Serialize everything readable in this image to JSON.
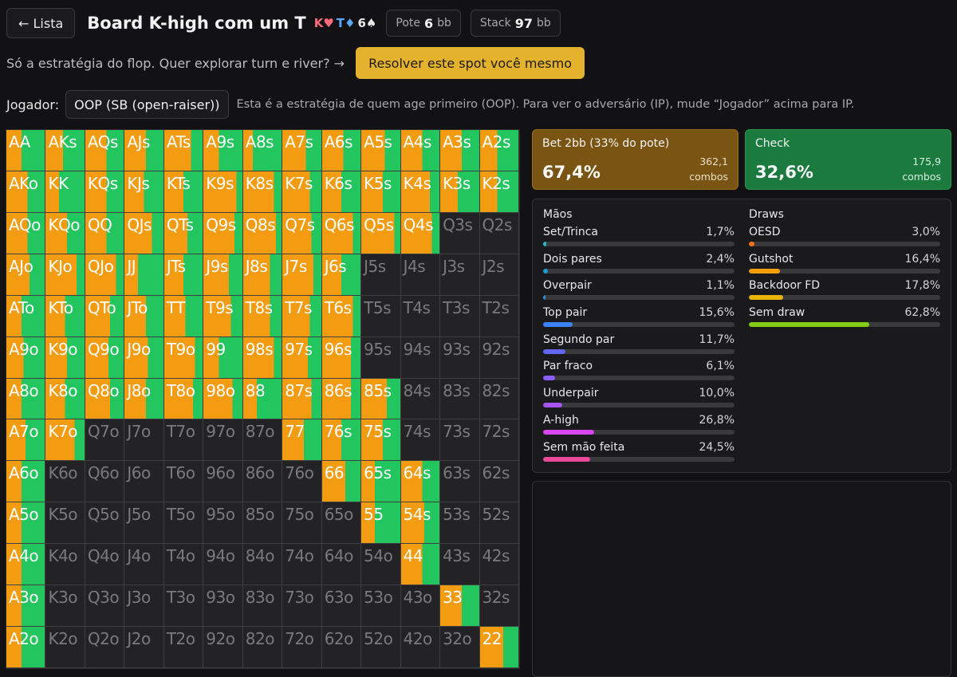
{
  "header": {
    "back_label": "← Lista",
    "title": "Board K-high com um T",
    "board": [
      {
        "rank": "K",
        "suit": "♥",
        "suit_name": "hearts",
        "color": "#ff6b7a"
      },
      {
        "rank": "T",
        "suit": "♦",
        "suit_name": "diamonds",
        "color": "#5aa9ff"
      },
      {
        "rank": "6",
        "suit": "♠",
        "suit_name": "spades",
        "color": "#e9e9e9"
      }
    ],
    "pot_label": "Pote",
    "pot_value": "6",
    "pot_unit": "bb",
    "stack_label": "Stack",
    "stack_value": "97",
    "stack_unit": "bb"
  },
  "promo": {
    "text": "Só a estratégia do flop. Quer explorar turn e river? →",
    "button_label": "Resolver este spot você mesmo"
  },
  "player": {
    "label": "Jogador:",
    "selected": "OOP (SB (open-raiser))",
    "hint": "Esta é a estratégia de quem age primeiro (OOP). Para ver o adversário (IP), mude “Jogador” acima para IP."
  },
  "colors": {
    "bet": "#f39c12",
    "check": "#22c55e",
    "empty": "#232325"
  },
  "grid": {
    "ranks": [
      "A",
      "K",
      "Q",
      "J",
      "T",
      "9",
      "8",
      "7",
      "6",
      "5",
      "4",
      "3",
      "2"
    ],
    "bet_fractions": [
      [
        0.4,
        0.45,
        0.55,
        0.55,
        0.7,
        0.4,
        0.25,
        0.6,
        0.55,
        0.6,
        0.55,
        0.55,
        0.45
      ],
      [
        0.55,
        0.35,
        0.55,
        0.5,
        0.5,
        0.85,
        0.8,
        0.7,
        0.5,
        0.55,
        0.75,
        0.45,
        0.45
      ],
      [
        0.55,
        0.55,
        0.55,
        0.7,
        0.6,
        0.8,
        0.85,
        0.75,
        0.8,
        0.85,
        0.8,
        0,
        0
      ],
      [
        0.6,
        0.8,
        0.8,
        0.35,
        0.5,
        0.65,
        0.7,
        0.8,
        0.5,
        0,
        0,
        0,
        0
      ],
      [
        0.4,
        0.5,
        0.65,
        0.55,
        0.55,
        0.7,
        0.7,
        0.7,
        0.8,
        0,
        0,
        0,
        0
      ],
      [
        0.45,
        0.55,
        0.6,
        0.6,
        0.8,
        0.4,
        0.8,
        0.65,
        0.75,
        0,
        0,
        0,
        0
      ],
      [
        0.4,
        0.5,
        0.65,
        0.55,
        0.75,
        0.75,
        0.35,
        0.75,
        0.75,
        0.65,
        0,
        0,
        0
      ],
      [
        0.5,
        0.75,
        0,
        0,
        0,
        0,
        0,
        0.55,
        0.5,
        0.55,
        0,
        0,
        0
      ],
      [
        0.4,
        0,
        0,
        0,
        0,
        0,
        0,
        0,
        0.6,
        0.35,
        0.55,
        0,
        0
      ],
      [
        0.4,
        0,
        0,
        0,
        0,
        0,
        0,
        0,
        0,
        0.35,
        0.6,
        0,
        0
      ],
      [
        0.4,
        0,
        0,
        0,
        0,
        0,
        0,
        0,
        0,
        0,
        0.55,
        0,
        0
      ],
      [
        0.4,
        0,
        0,
        0,
        0,
        0,
        0,
        0,
        0,
        0,
        0,
        0.55,
        0
      ],
      [
        0.4,
        0,
        0,
        0,
        0,
        0,
        0,
        0,
        0,
        0,
        0,
        0,
        0.6
      ]
    ],
    "check_fractions": [
      [
        0.6,
        0.55,
        0.45,
        0.45,
        0.3,
        0.6,
        0.75,
        0.4,
        0.45,
        0.4,
        0.45,
        0.45,
        0.55
      ],
      [
        0.45,
        0.65,
        0.45,
        0.5,
        0.5,
        0.15,
        0.2,
        0.3,
        0.5,
        0.45,
        0.25,
        0.55,
        0.55
      ],
      [
        0.45,
        0.45,
        0.45,
        0.3,
        0.4,
        0.2,
        0.15,
        0.25,
        0.2,
        0.15,
        0.2,
        0,
        0
      ],
      [
        0.4,
        0.2,
        0.2,
        0.65,
        0.5,
        0.35,
        0.3,
        0.2,
        0.5,
        0,
        0,
        0,
        0
      ],
      [
        0.6,
        0.5,
        0.35,
        0.45,
        0.45,
        0.3,
        0.3,
        0.3,
        0.2,
        0,
        0,
        0,
        0
      ],
      [
        0.55,
        0.45,
        0.4,
        0.4,
        0.2,
        0.6,
        0.2,
        0.35,
        0.25,
        0,
        0,
        0,
        0
      ],
      [
        0.6,
        0.5,
        0.35,
        0.45,
        0.25,
        0.25,
        0.65,
        0.25,
        0.25,
        0.35,
        0,
        0,
        0
      ],
      [
        0.5,
        0.25,
        0,
        0,
        0,
        0,
        0,
        0.45,
        0.5,
        0.45,
        0,
        0,
        0
      ],
      [
        0.6,
        0,
        0,
        0,
        0,
        0,
        0,
        0,
        0.4,
        0.65,
        0.45,
        0,
        0
      ],
      [
        0.6,
        0,
        0,
        0,
        0,
        0,
        0,
        0,
        0,
        0.65,
        0.4,
        0,
        0
      ],
      [
        0.6,
        0,
        0,
        0,
        0,
        0,
        0,
        0,
        0,
        0,
        0.45,
        0,
        0
      ],
      [
        0.6,
        0,
        0,
        0,
        0,
        0,
        0,
        0,
        0,
        0,
        0,
        0.45,
        0
      ],
      [
        0.6,
        0,
        0,
        0,
        0,
        0,
        0,
        0,
        0,
        0,
        0,
        0,
        0.4
      ]
    ]
  },
  "actions": {
    "bet": {
      "label": "Bet 2bb (33% do pote)",
      "pct": "67,4%",
      "combos": "362,1",
      "combos_label": "combos"
    },
    "check": {
      "label": "Check",
      "pct": "32,6%",
      "combos": "175,9",
      "combos_label": "combos"
    }
  },
  "stats": {
    "hands_title": "Mãos",
    "hands": [
      {
        "name": "Set/Trinca",
        "value": "1,7%",
        "pct": 1.7,
        "color": "#22b8cf"
      },
      {
        "name": "Dois pares",
        "value": "2,4%",
        "pct": 2.4,
        "color": "#1c9bd6"
      },
      {
        "name": "Overpair",
        "value": "1,1%",
        "pct": 1.1,
        "color": "#2b8fe0"
      },
      {
        "name": "Top pair",
        "value": "15,6%",
        "pct": 15.6,
        "color": "#3b82f6"
      },
      {
        "name": "Segundo par",
        "value": "11,7%",
        "pct": 11.7,
        "color": "#6366f1"
      },
      {
        "name": "Par fraco",
        "value": "6,1%",
        "pct": 6.1,
        "color": "#8b5cf6"
      },
      {
        "name": "Underpair",
        "value": "10,0%",
        "pct": 10.0,
        "color": "#a855f7"
      },
      {
        "name": "A-high",
        "value": "26,8%",
        "pct": 26.8,
        "color": "#d946ef"
      },
      {
        "name": "Sem mão feita",
        "value": "24,5%",
        "pct": 24.5,
        "color": "#ec4899"
      }
    ],
    "draws_title": "Draws",
    "draws": [
      {
        "name": "OESD",
        "value": "3,0%",
        "pct": 3.0,
        "color": "#f97316"
      },
      {
        "name": "Gutshot",
        "value": "16,4%",
        "pct": 16.4,
        "color": "#f59e0b"
      },
      {
        "name": "Backdoor FD",
        "value": "17,8%",
        "pct": 17.8,
        "color": "#eab308"
      },
      {
        "name": "Sem draw",
        "value": "62,8%",
        "pct": 62.8,
        "color": "#84cc16"
      }
    ]
  }
}
